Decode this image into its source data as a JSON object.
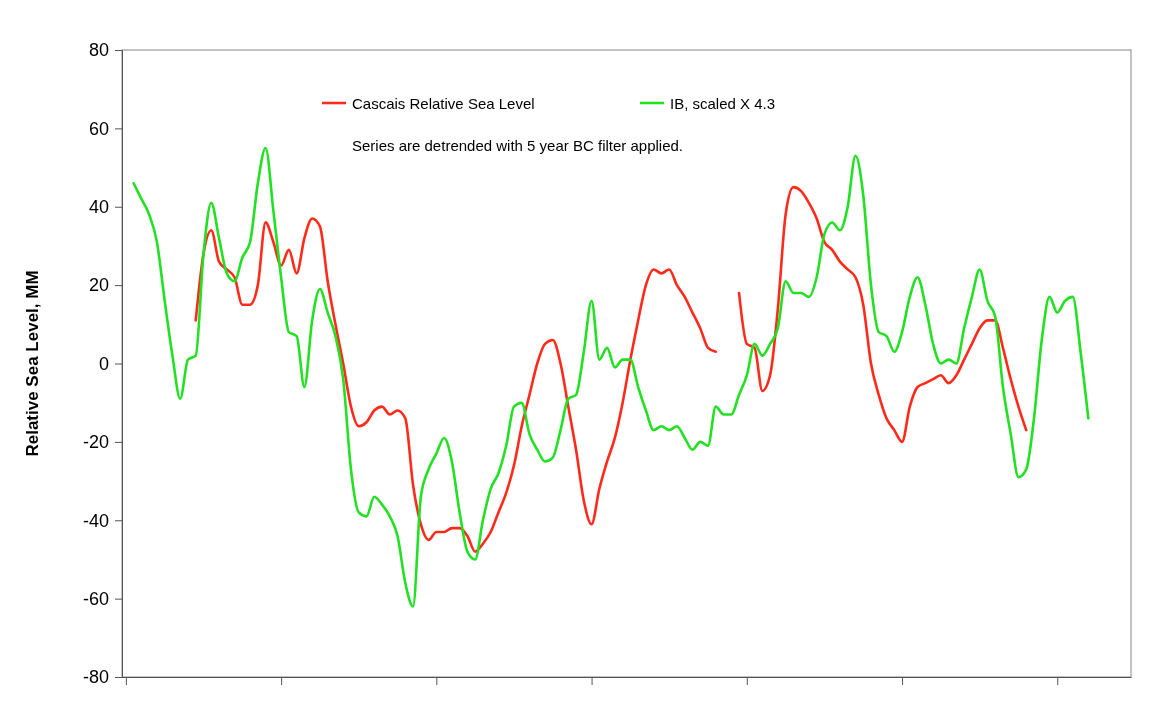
{
  "chart_data": {
    "type": "line",
    "ylabel": "Relative Sea Level, MM",
    "ylim": [
      -80,
      80
    ],
    "yticks": [
      -80,
      -60,
      -40,
      -20,
      0,
      20,
      40,
      60,
      80
    ],
    "tick_labels": "y",
    "legend": "top",
    "grid": false,
    "marker": "none",
    "line_style": "solid",
    "annotations": [
      "Series are detrended with 5 year BC filter applied."
    ],
    "categories": [
      null,
      null,
      null,
      null,
      null,
      null,
      null,
      null,
      null,
      null,
      null,
      null,
      null,
      null,
      null,
      null,
      null,
      null,
      null,
      null,
      null,
      null,
      null,
      null,
      null,
      null,
      null,
      null,
      null,
      null,
      null,
      null,
      null,
      null,
      null,
      null,
      null,
      null,
      null,
      null,
      null,
      null,
      null,
      null,
      null,
      null,
      null,
      null,
      null,
      null,
      null,
      null,
      null,
      null,
      null,
      null,
      null,
      null,
      null,
      null,
      null,
      null,
      null,
      null,
      null,
      null,
      null,
      null,
      null,
      null,
      null,
      null,
      null,
      null,
      null,
      null,
      null,
      null,
      null,
      null,
      null,
      null,
      null,
      null,
      null,
      null,
      null,
      null,
      null,
      null,
      null,
      null,
      null,
      null,
      null,
      null,
      null,
      null,
      null,
      null,
      null,
      null,
      null,
      null,
      null,
      null,
      null,
      null,
      null,
      null,
      null,
      null,
      null,
      null,
      null,
      null,
      null,
      null,
      null,
      null,
      null,
      null,
      null,
      null,
      null,
      null,
      null,
      null,
      null,
      null
    ],
    "series": [
      {
        "name": "Cascais Relative Sea Level",
        "color": "#ff2a1a",
        "values": [
          null,
          null,
          null,
          null,
          null,
          null,
          null,
          null,
          null,
          11,
          28,
          34,
          26,
          24,
          22,
          15,
          15,
          20,
          36,
          31,
          25,
          29,
          23,
          32,
          37,
          35,
          21,
          10,
          0,
          -11,
          -16,
          -15,
          -12,
          -11,
          -13,
          -12,
          -14,
          -31,
          -41,
          -45,
          -43,
          -43,
          -42,
          -42,
          -44,
          -48,
          -46,
          -43,
          -38,
          -33,
          -26,
          -16,
          -8,
          0,
          5,
          6,
          0,
          -11,
          -22,
          -35,
          -41,
          -32,
          -25,
          -19,
          -10,
          1,
          11,
          20,
          24,
          23,
          24,
          20,
          17,
          13,
          9,
          4,
          3,
          null,
          null,
          18,
          5,
          4,
          -7,
          -3,
          14,
          38,
          45,
          44,
          41,
          37,
          31,
          29,
          26,
          24,
          22,
          15,
          0,
          -8,
          -14,
          -17,
          -20,
          -11,
          -6,
          -5,
          -4,
          -3,
          -5,
          -3,
          1,
          5,
          9,
          11,
          11,
          4,
          -4,
          -11,
          -17,
          null,
          null,
          null,
          null,
          null,
          null,
          null,
          null,
          null,
          null,
          null,
          null,
          null
        ]
      },
      {
        "name": "IB, scaled X 4.3",
        "color": "#22e022",
        "values": [
          null,
          46,
          42,
          38,
          31,
          16,
          2,
          -9,
          1,
          2,
          28,
          41,
          32,
          23,
          21,
          27,
          31,
          46,
          55,
          39,
          22,
          8,
          7,
          -6,
          11,
          19,
          13,
          7,
          -4,
          -27,
          -38,
          -39,
          -34,
          -36,
          -39,
          -44,
          -56,
          -62,
          -34,
          -27,
          -23,
          -19,
          -25,
          -38,
          -48,
          -50,
          -40,
          -32,
          -28,
          -21,
          -11,
          -10,
          -18,
          -22,
          -25,
          -24,
          -17,
          -9,
          -8,
          3,
          16,
          1,
          4,
          -1,
          1,
          1,
          -6,
          -12,
          -17,
          -16,
          -17,
          -16,
          -19,
          -22,
          -20,
          -21,
          -11,
          -13,
          -13,
          -8,
          -3,
          5,
          2,
          5,
          9,
          21,
          18,
          18,
          17,
          22,
          33,
          36,
          34,
          40,
          53,
          43,
          20,
          8,
          7,
          3,
          8,
          17,
          22,
          15,
          5,
          0,
          1,
          0,
          9,
          17,
          24,
          16,
          12,
          -6,
          -18,
          -29,
          -27,
          -14,
          6,
          17,
          13,
          16,
          17,
          3,
          -14,
          null,
          null,
          null,
          null,
          null
        ]
      }
    ]
  }
}
